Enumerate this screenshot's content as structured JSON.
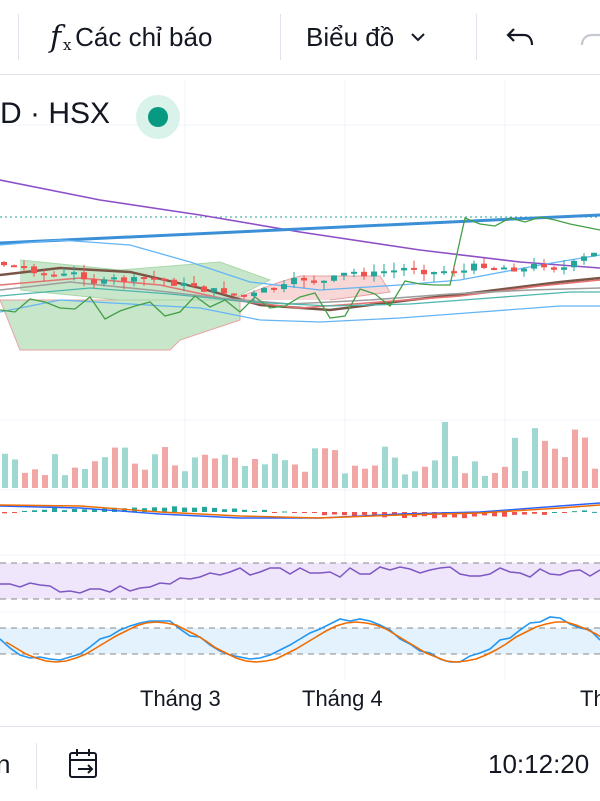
{
  "toolbar": {
    "indicators_label": "Các chỉ báo",
    "chart_type_label": "Biểu đồ"
  },
  "symbol": {
    "text": "D · HSX"
  },
  "footer": {
    "left_text": "n",
    "time": "10:12:20"
  },
  "colors": {
    "up": "#26a69a",
    "down": "#ef5350",
    "vol_up": "#9fd8d0",
    "vol_down": "#f2a7a7",
    "trendline": "#3a8fd6",
    "purple": "#8e4fc7",
    "green": "#43a047",
    "cloud_green": "#c8e6c9",
    "cloud_red": "#f8d7d7",
    "macd": "#2962ff",
    "signal": "#ef6c00",
    "rsi": "#7e57c2",
    "rsi_band": "#efe6fb",
    "stoch_k": "#2196f3",
    "stoch_d": "#ef6c00",
    "stoch_band": "#e3f2fd"
  },
  "chart_data": {
    "type": "candlestick",
    "x_tick_labels": [
      "Tháng 3",
      "Tháng 4",
      "Th"
    ],
    "grid": true,
    "panes": [
      "price",
      "volume",
      "macd",
      "rsi",
      "stochastic"
    ]
  }
}
